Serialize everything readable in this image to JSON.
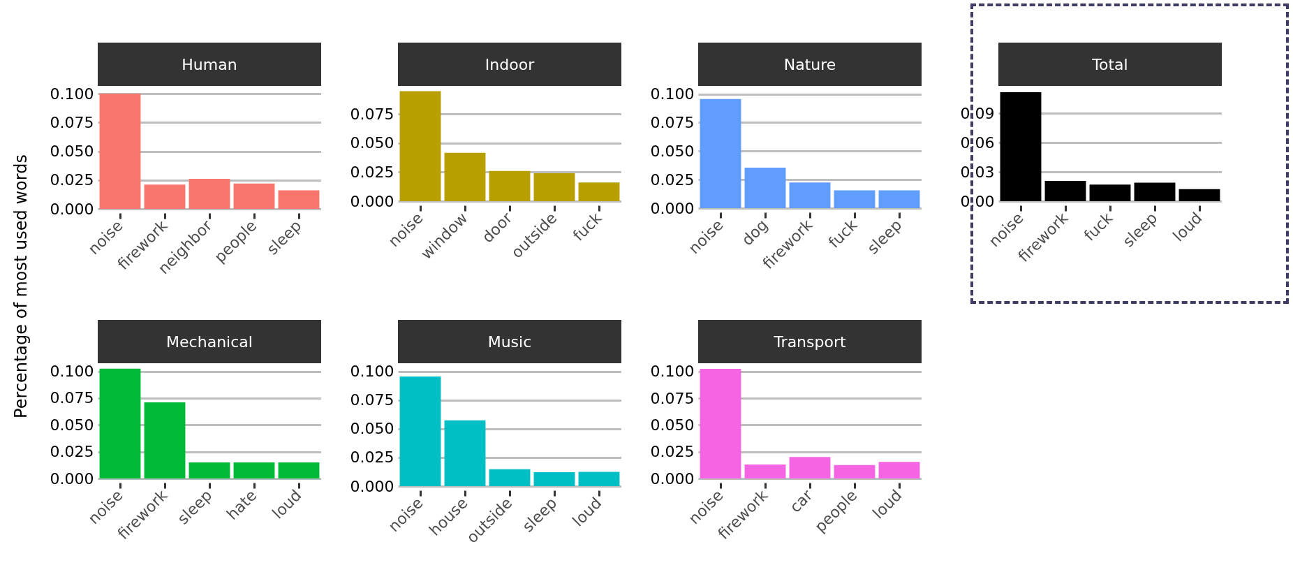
{
  "chart_data": [
    {
      "type": "bar",
      "title": "Human",
      "ylabel": "Percentage of most used words",
      "categories": [
        "noise",
        "firework",
        "neighbor",
        "people",
        "sleep"
      ],
      "values": [
        0.1,
        0.021,
        0.026,
        0.022,
        0.016
      ],
      "color": "#f8766d",
      "ylim": [
        0,
        0.1
      ],
      "yticks": [
        {
          "value": 0,
          "label": "0.000"
        },
        {
          "value": 0.025,
          "label": "0.025"
        },
        {
          "value": 0.05,
          "label": "0.050"
        },
        {
          "value": 0.075,
          "label": "0.075"
        },
        {
          "value": 0.1,
          "label": "0.100"
        }
      ],
      "grid": "y"
    },
    {
      "type": "bar",
      "title": "Indoor",
      "categories": [
        "noise",
        "window",
        "door",
        "outside",
        "fuck"
      ],
      "values": [
        0.0945,
        0.0415,
        0.026,
        0.024,
        0.016
      ],
      "color": "#b79f00",
      "ylim": [
        0,
        0.099
      ],
      "yticks": [
        {
          "value": 0,
          "label": "0.000"
        },
        {
          "value": 0.025,
          "label": "0.025"
        },
        {
          "value": 0.05,
          "label": "0.050"
        },
        {
          "value": 0.075,
          "label": "0.075"
        }
      ],
      "grid": "y"
    },
    {
      "type": "bar",
      "title": "Nature",
      "categories": [
        "noise",
        "dog",
        "firework",
        "fuck",
        "sleep"
      ],
      "values": [
        0.0957,
        0.0355,
        0.0225,
        0.0156,
        0.0156
      ],
      "color": "#619cff",
      "ylim": [
        0,
        0.101
      ],
      "yticks": [
        {
          "value": 0,
          "label": "0.000"
        },
        {
          "value": 0.025,
          "label": "0.025"
        },
        {
          "value": 0.05,
          "label": "0.050"
        },
        {
          "value": 0.075,
          "label": "0.075"
        },
        {
          "value": 0.1,
          "label": "0.100"
        }
      ],
      "grid": "y"
    },
    {
      "type": "bar",
      "title": "Total",
      "categories": [
        "noise",
        "firework",
        "fuck",
        "sleep",
        "loud"
      ],
      "values": [
        0.1115,
        0.0207,
        0.0169,
        0.019,
        0.0123
      ],
      "color": "#000000",
      "ylim": [
        0,
        0.118
      ],
      "yticks": [
        {
          "value": 0,
          "label": "0.00"
        },
        {
          "value": 0.03,
          "label": "0.03"
        },
        {
          "value": 0.06,
          "label": "0.06"
        },
        {
          "value": 0.09,
          "label": "0.09"
        }
      ],
      "grid": "y"
    },
    {
      "type": "bar",
      "title": "Mechanical",
      "categories": [
        "noise",
        "firework",
        "sleep",
        "hate",
        "loud"
      ],
      "values": [
        0.1024,
        0.071,
        0.015,
        0.015,
        0.015
      ],
      "color": "#00ba38",
      "ylim": [
        0,
        0.1075
      ],
      "yticks": [
        {
          "value": 0,
          "label": "0.000"
        },
        {
          "value": 0.025,
          "label": "0.025"
        },
        {
          "value": 0.05,
          "label": "0.050"
        },
        {
          "value": 0.075,
          "label": "0.075"
        },
        {
          "value": 0.1,
          "label": "0.100"
        }
      ],
      "grid": "y"
    },
    {
      "type": "bar",
      "title": "Music",
      "categories": [
        "noise",
        "house",
        "outside",
        "sleep",
        "loud"
      ],
      "values": [
        0.0955,
        0.0574,
        0.0148,
        0.0122,
        0.0124
      ],
      "color": "#00bfc4",
      "ylim": [
        0,
        0.1004
      ],
      "yticks": [
        {
          "value": 0,
          "label": "0.000"
        },
        {
          "value": 0.025,
          "label": "0.025"
        },
        {
          "value": 0.05,
          "label": "0.050"
        },
        {
          "value": 0.075,
          "label": "0.075"
        },
        {
          "value": 0.1,
          "label": "0.100"
        }
      ],
      "grid": "y"
    },
    {
      "type": "bar",
      "title": "Transport",
      "categories": [
        "noise",
        "firework",
        "car",
        "people",
        "loud"
      ],
      "values": [
        0.1024,
        0.013,
        0.02,
        0.0126,
        0.0155
      ],
      "color": "#f564e3",
      "ylim": [
        0,
        0.1077
      ],
      "yticks": [
        {
          "value": 0,
          "label": "0.000"
        },
        {
          "value": 0.025,
          "label": "0.025"
        },
        {
          "value": 0.05,
          "label": "0.050"
        },
        {
          "value": 0.075,
          "label": "0.075"
        },
        {
          "value": 0.1,
          "label": "0.100"
        }
      ],
      "grid": "y"
    }
  ]
}
